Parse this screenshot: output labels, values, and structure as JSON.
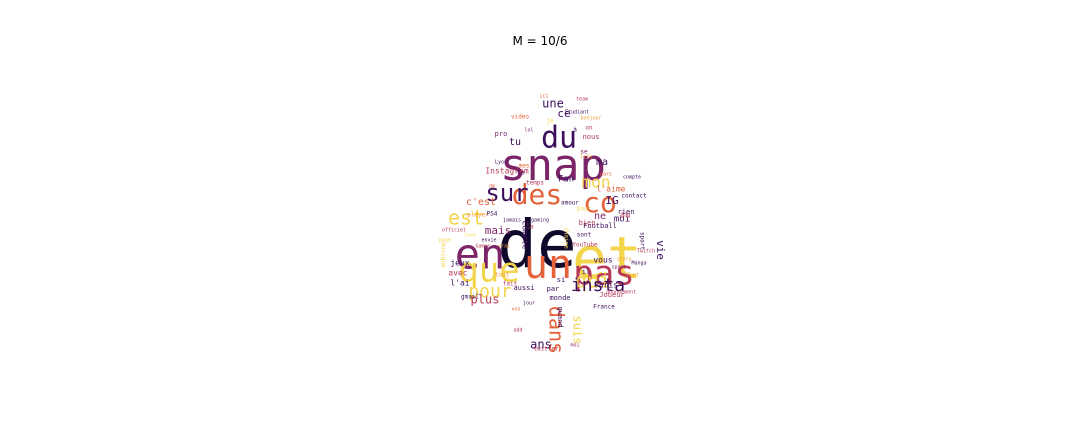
{
  "title": "M = 10/6",
  "colors": [
    "#10082a",
    "#3c0f5e",
    "#7b2468",
    "#b83a58",
    "#e4623a",
    "#f59a3a",
    "#f3d54c",
    "#f8e58c"
  ],
  "words": [
    {
      "text": "de",
      "weight": 1.0,
      "color": "#10082a",
      "vertical": false
    },
    {
      "text": "et",
      "weight": 0.85,
      "color": "#f3d54c",
      "vertical": false
    },
    {
      "text": "en",
      "weight": 0.62,
      "color": "#7b2468",
      "vertical": false
    },
    {
      "text": "snap",
      "weight": 0.62,
      "color": "#7b2468",
      "vertical": false
    },
    {
      "text": "un",
      "weight": 0.58,
      "color": "#e4623a",
      "vertical": false
    },
    {
      "text": "pas",
      "weight": 0.55,
      "color": "#b83a58",
      "vertical": false
    },
    {
      "text": "que",
      "weight": 0.5,
      "color": "#f3d54c",
      "vertical": false
    },
    {
      "text": "du",
      "weight": 0.46,
      "color": "#3c0f5e",
      "vertical": false
    },
    {
      "text": "des",
      "weight": 0.42,
      "color": "#e4623a",
      "vertical": false
    },
    {
      "text": "sur",
      "weight": 0.4,
      "color": "#3c0f5e",
      "vertical": false
    },
    {
      "text": "co",
      "weight": 0.42,
      "color": "#e4623a",
      "vertical": false
    },
    {
      "text": "est",
      "weight": 0.3,
      "color": "#f3d54c",
      "vertical": false
    },
    {
      "text": "dans",
      "weight": 0.28,
      "color": "#e4623a",
      "vertical": true
    },
    {
      "text": "qui",
      "weight": 0.28,
      "color": "#f3d54c",
      "vertical": false
    },
    {
      "text": "pour",
      "weight": 0.28,
      "color": "#f3d54c",
      "vertical": false
    },
    {
      "text": "insta",
      "weight": 0.26,
      "color": "#3c0f5e",
      "vertical": false
    },
    {
      "text": "mon",
      "weight": 0.24,
      "color": "#f3d54c",
      "vertical": false
    },
    {
      "text": "une",
      "weight": 0.18,
      "color": "#3c0f5e",
      "vertical": false
    },
    {
      "text": "plus",
      "weight": 0.16,
      "color": "#b83a58",
      "vertical": false
    },
    {
      "text": "ans",
      "weight": 0.16,
      "color": "#3c0f5e",
      "vertical": false
    },
    {
      "text": "suis",
      "weight": 0.16,
      "color": "#f3d54c",
      "vertical": true
    },
    {
      "text": "vie",
      "weight": 0.15,
      "color": "#3c0f5e",
      "vertical": true
    },
    {
      "text": "ce",
      "weight": 0.14,
      "color": "#3c0f5e",
      "vertical": false
    },
    {
      "text": "mais",
      "weight": 0.13,
      "color": "#7b2468",
      "vertical": false
    },
    {
      "text": "IG",
      "weight": 0.13,
      "color": "#3c0f5e",
      "vertical": false
    },
    {
      "text": "ne",
      "weight": 0.13,
      "color": "#7b2468",
      "vertical": false
    },
    {
      "text": "tu",
      "weight": 0.12,
      "color": "#3c0f5e",
      "vertical": false
    },
    {
      "text": "ma",
      "weight": 0.11,
      "color": "#3c0f5e",
      "vertical": false
    },
    {
      "text": "c'est",
      "weight": 0.11,
      "color": "#e4623a",
      "vertical": false
    },
    {
      "text": "moi",
      "weight": 0.11,
      "color": "#3c0f5e",
      "vertical": false
    },
    {
      "text": "au",
      "weight": 0.11,
      "color": "#b83a58",
      "vertical": false
    },
    {
      "text": "Fan",
      "weight": 0.1,
      "color": "#3c0f5e",
      "vertical": false
    },
    {
      "text": "l'aime",
      "weight": 0.09,
      "color": "#e4623a",
      "vertical": false
    },
    {
      "text": "Instagram",
      "weight": 0.09,
      "color": "#b83a58",
      "vertical": false
    },
    {
      "text": "vous",
      "weight": 0.08,
      "color": "#3c0f5e",
      "vertical": false
    },
    {
      "text": "Paris",
      "weight": 0.08,
      "color": "#3c0f5e",
      "vertical": false
    },
    {
      "text": "l'ai",
      "weight": 0.08,
      "color": "#3c0f5e",
      "vertical": false
    },
    {
      "text": "jeux",
      "weight": 0.08,
      "color": "#3c0f5e",
      "vertical": false
    },
    {
      "text": "avec",
      "weight": 0.08,
      "color": "#b83a58",
      "vertical": false
    },
    {
      "text": "il",
      "weight": 0.08,
      "color": "#3c0f5e",
      "vertical": false
    },
    {
      "text": "si",
      "weight": 0.08,
      "color": "#3c0f5e",
      "vertical": false
    },
    {
      "text": "Compte",
      "weight": 0.08,
      "color": "#3c0f5e",
      "vertical": true
    },
    {
      "text": "par",
      "weight": 0.07,
      "color": "#3c0f5e",
      "vertical": false
    },
    {
      "text": "Joueur",
      "weight": 0.07,
      "color": "#b83a58",
      "vertical": false
    },
    {
      "text": "quand",
      "weight": 0.07,
      "color": "#3c0f5e",
      "vertical": true
    },
    {
      "text": "monde",
      "weight": 0.07,
      "color": "#3c0f5e",
      "vertical": false
    },
    {
      "text": "aussi",
      "weight": 0.07,
      "color": "#3c0f5e",
      "vertical": false
    },
    {
      "text": "Football",
      "weight": 0.06,
      "color": "#3c0f5e",
      "vertical": false
    },
    {
      "text": "bien",
      "weight": 0.06,
      "color": "#b83a58",
      "vertical": false
    },
    {
      "text": "rien",
      "weight": 0.06,
      "color": "#3c0f5e",
      "vertical": false
    },
    {
      "text": "nous",
      "weight": 0.06,
      "color": "#b83a58",
      "vertical": false
    },
    {
      "text": "pro",
      "weight": 0.06,
      "color": "#7b2468",
      "vertical": false
    },
    {
      "text": "sport",
      "weight": 0.06,
      "color": "#3c0f5e",
      "vertical": true
    },
    {
      "text": "France",
      "weight": 0.06,
      "color": "#3c0f5e",
      "vertical": false
    },
    {
      "text": "musique",
      "weight": 0.06,
      "color": "#f3d54c",
      "vertical": true
    },
    {
      "text": "player",
      "weight": 0.06,
      "color": "#f59a3a",
      "vertical": false
    },
    {
      "text": "twitter",
      "weight": 0.06,
      "color": "#b83a58",
      "vertical": false
    },
    {
      "text": "gmail",
      "weight": 0.05,
      "color": "#3c0f5e",
      "vertical": false
    },
    {
      "text": "PS4",
      "weight": 0.05,
      "color": "#3c0f5e",
      "vertical": false
    },
    {
      "text": "video",
      "weight": 0.05,
      "color": "#e4623a",
      "vertical": false
    },
    {
      "text": "mes",
      "weight": 0.07,
      "color": "#e4623a",
      "vertical": false
    },
    {
      "text": "temps",
      "weight": 0.05,
      "color": "#b83a58",
      "vertical": false
    },
    {
      "text": "contact",
      "weight": 0.04,
      "color": "#3c0f5e",
      "vertical": false
    },
    {
      "text": "se",
      "weight": 0.05,
      "color": "#7b2468",
      "vertical": false
    },
    {
      "text": "le",
      "weight": 0.05,
      "color": "#3c0f5e",
      "vertical": false
    },
    {
      "text": "la",
      "weight": 0.05,
      "color": "#b83a58",
      "vertical": false
    },
    {
      "text": "tout",
      "weight": 0.05,
      "color": "#f59a3a",
      "vertical": false
    },
    {
      "text": "fait",
      "weight": 0.04,
      "color": "#b83a58",
      "vertical": false
    },
    {
      "text": "chaine",
      "weight": 0.04,
      "color": "#f3d54c",
      "vertical": true
    },
    {
      "text": "YouTube",
      "weight": 0.04,
      "color": "#b83a58",
      "vertical": false
    },
    {
      "text": "amour",
      "weight": 0.04,
      "color": "#3c0f5e",
      "vertical": false
    },
    {
      "text": "je",
      "weight": 0.05,
      "color": "#f3d54c",
      "vertical": false
    },
    {
      "text": "à",
      "weight": 0.05,
      "color": "#3c0f5e",
      "vertical": false
    },
    {
      "text": "on",
      "weight": 0.05,
      "color": "#b83a58",
      "vertical": false
    },
    {
      "text": "pour",
      "weight": 0.04,
      "color": "#f3d54c",
      "vertical": false
    },
    {
      "text": "sont",
      "weight": 0.04,
      "color": "#3c0f5e",
      "vertical": false
    },
    {
      "text": "vos",
      "weight": 0.04,
      "color": "#e4623a",
      "vertical": false
    },
    {
      "text": "abonnement",
      "weight": 0.035,
      "color": "#b83a58",
      "vertical": false
    },
    {
      "text": "sport",
      "weight": 0.035,
      "color": "#7b2468",
      "vertical": false
    },
    {
      "text": "story",
      "weight": 0.035,
      "color": "#f59a3a",
      "vertical": false
    },
    {
      "text": "Manga",
      "weight": 0.035,
      "color": "#3c0f5e",
      "vertical": false
    },
    {
      "text": "Twitch",
      "weight": 0.035,
      "color": "#b83a58",
      "vertical": false
    },
    {
      "text": "Foot",
      "weight": 0.035,
      "color": "#f59a3a",
      "vertical": false
    },
    {
      "text": "compte",
      "weight": 0.035,
      "color": "#3c0f5e",
      "vertical": false
    },
    {
      "text": "gars",
      "weight": 0.035,
      "color": "#e4623a",
      "vertical": false
    },
    {
      "text": "envie",
      "weight": 0.035,
      "color": "#3c0f5e",
      "vertical": false
    },
    {
      "text": "Gamer",
      "weight": 0.035,
      "color": "#b83a58",
      "vertical": false
    },
    {
      "text": "vrai",
      "weight": 0.035,
      "color": "#f59a3a",
      "vertical": false
    },
    {
      "text": "jamais",
      "weight": 0.035,
      "color": "#3c0f5e",
      "vertical": false
    },
    {
      "text": "page",
      "weight": 0.035,
      "color": "#f3d54c",
      "vertical": false
    },
    {
      "text": "officiel",
      "weight": 0.035,
      "color": "#b83a58",
      "vertical": false
    },
    {
      "text": "lol",
      "weight": 0.035,
      "color": "#7b2468",
      "vertical": false
    },
    {
      "text": "ici",
      "weight": 0.035,
      "color": "#e4623a",
      "vertical": false
    },
    {
      "text": "Etudiant",
      "weight": 0.035,
      "color": "#3c0f5e",
      "vertical": false
    },
    {
      "text": "bonjour",
      "weight": 0.035,
      "color": "#f59a3a",
      "vertical": false
    },
    {
      "text": "team",
      "weight": 0.035,
      "color": "#b83a58",
      "vertical": false
    },
    {
      "text": "Lyon",
      "weight": 0.035,
      "color": "#3c0f5e",
      "vertical": false
    },
    {
      "text": "dm",
      "weight": 0.035,
      "color": "#e4623a",
      "vertical": false
    },
    {
      "text": "love",
      "weight": 0.035,
      "color": "#f3d54c",
      "vertical": false
    },
    {
      "text": "jour",
      "weight": 0.035,
      "color": "#3c0f5e",
      "vertical": false
    },
    {
      "text": "add",
      "weight": 0.035,
      "color": "#b83a58",
      "vertical": false
    },
    {
      "text": "moi",
      "weight": 0.035,
      "color": "#7b2468",
      "vertical": false
    },
    {
      "text": "life",
      "weight": 0.035,
      "color": "#f59a3a",
      "vertical": false
    },
    {
      "text": "gaming",
      "weight": 0.035,
      "color": "#3c0f5e",
      "vertical": false
    }
  ]
}
